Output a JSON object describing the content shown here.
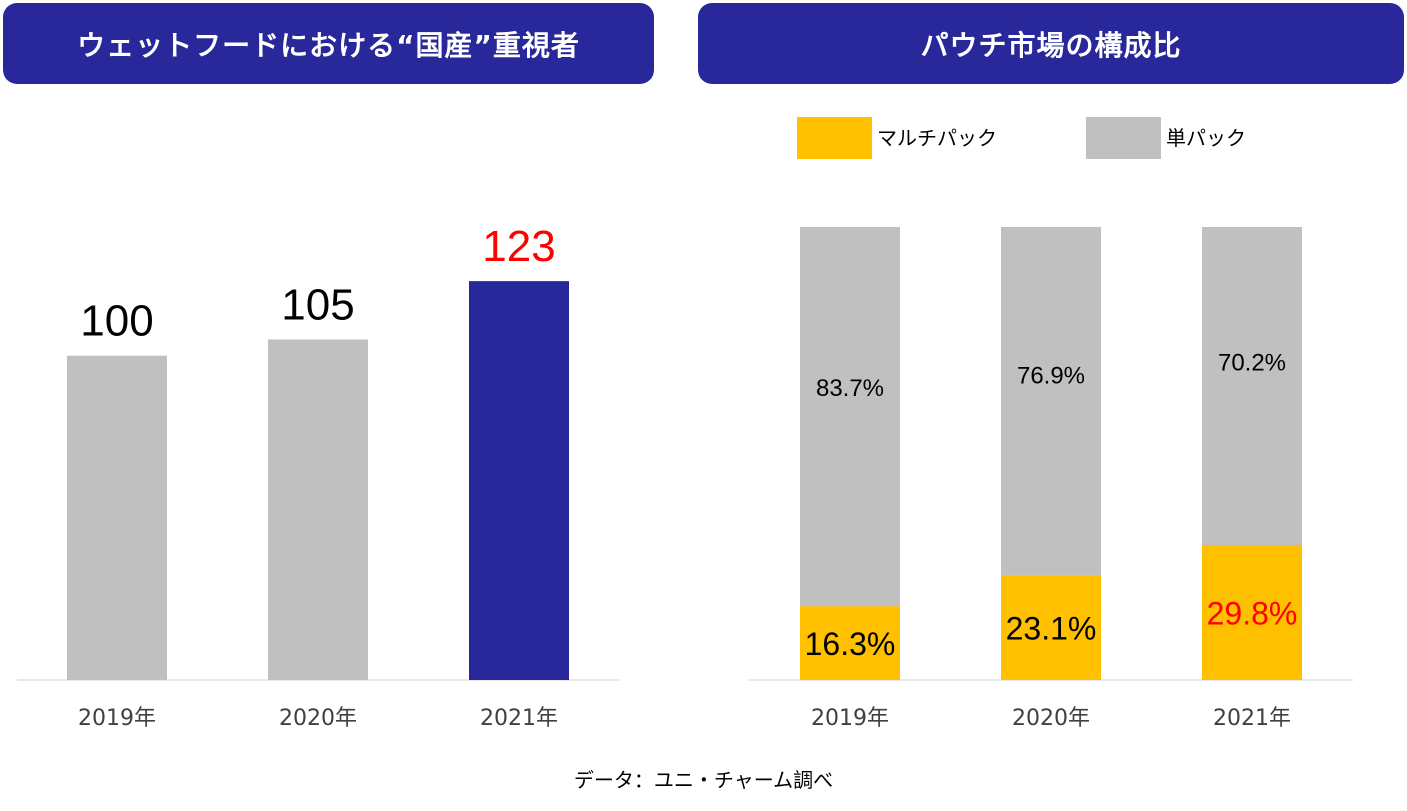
{
  "chart_data": [
    {
      "type": "bar",
      "title": "ウェットフードにおける“国産”重視者",
      "categories": [
        "2019年",
        "2020年",
        "2021年"
      ],
      "values": [
        100,
        105,
        123
      ],
      "value_labels": [
        "100",
        "105",
        "123"
      ],
      "bar_colors": [
        "#c0c0c0",
        "#c0c0c0",
        "#28289a"
      ],
      "label_colors": [
        "#000000",
        "#000000",
        "#ff0000"
      ],
      "ylim": [
        0,
        140
      ]
    },
    {
      "type": "bar",
      "stacked": true,
      "title": "パウチ市場の構成比",
      "categories": [
        "2019年",
        "2020年",
        "2021年"
      ],
      "series": [
        {
          "name": "マルチパック",
          "color": "#ffc000",
          "values": [
            16.3,
            23.1,
            29.8
          ],
          "labels": [
            "16.3%",
            "23.1%",
            "29.8%"
          ],
          "label_colors": [
            "#000000",
            "#000000",
            "#ff0000"
          ]
        },
        {
          "name": "単パック",
          "color": "#c0c0c0",
          "values": [
            83.7,
            76.9,
            70.2
          ],
          "labels": [
            "83.7%",
            "76.9%",
            "70.2%"
          ],
          "label_colors": [
            "#000000",
            "#000000",
            "#000000"
          ]
        }
      ],
      "ylim": [
        0,
        100
      ],
      "legend": "top"
    }
  ],
  "source_note": "データ：ユニ・チャーム調べ",
  "colors": {
    "header_bg": "#28289a",
    "highlight": "#ff0000",
    "gray": "#c0c0c0",
    "yellow": "#ffc000"
  }
}
